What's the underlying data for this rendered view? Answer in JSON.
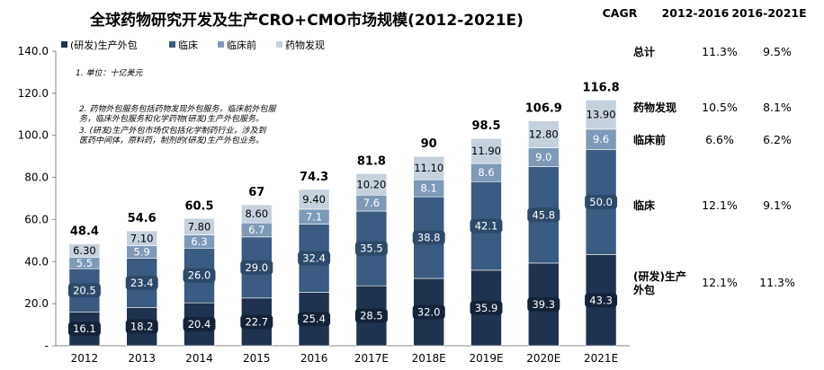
{
  "chart_data": {
    "type": "bar",
    "stacked": true,
    "title": "全球药物研究开发及生产CRO+CMO市场规模(2012-2021E)",
    "categories": [
      "2012",
      "2013",
      "2014",
      "2015",
      "2016",
      "2017E",
      "2018E",
      "2019E",
      "2020E",
      "2021E"
    ],
    "series": [
      {
        "name": "(研发)生产外包",
        "color": "#1f3350",
        "values": [
          16.1,
          18.2,
          20.4,
          22.7,
          25.4,
          28.5,
          32.0,
          35.9,
          39.3,
          43.3
        ],
        "labels": [
          "16.1",
          "18.2",
          "20.4",
          "22.7",
          "25.4",
          "28.5",
          "32.0",
          "35.9",
          "39.3",
          "43.3"
        ]
      },
      {
        "name": "临床",
        "color": "#3a5b82",
        "values": [
          20.5,
          23.4,
          26.0,
          29.0,
          32.4,
          35.5,
          38.8,
          42.1,
          45.8,
          50.0
        ],
        "labels": [
          "20.5",
          "23.4",
          "26.0",
          "29.0",
          "32.4",
          "35.5",
          "38.8",
          "42.1",
          "45.8",
          "50.0"
        ]
      },
      {
        "name": "临床前",
        "color": "#7f9ab8",
        "values": [
          5.5,
          5.9,
          6.3,
          6.7,
          7.1,
          7.6,
          8.1,
          8.6,
          9.0,
          9.6
        ],
        "labels": [
          "5.5",
          "5.9",
          "6.3",
          "6.7",
          "7.1",
          "7.6",
          "8.1",
          "8.6",
          "9.0",
          "9.6"
        ]
      },
      {
        "name": "药物发现",
        "color": "#c6d1de",
        "values": [
          6.3,
          7.1,
          7.8,
          8.6,
          9.4,
          10.2,
          11.1,
          11.9,
          12.8,
          13.9
        ],
        "labels": [
          "6.30",
          "7.10",
          "7.80",
          "8.60",
          "9.40",
          "10.20",
          "11.10",
          "11.90",
          "12.80",
          "13.90"
        ]
      }
    ],
    "totals": [
      "48.4",
      "54.6",
      "60.5",
      "67",
      "74.3",
      "81.8",
      "90",
      "98.5",
      "106.9",
      "116.8"
    ],
    "ylim": [
      0,
      140
    ],
    "yticks": [
      "-",
      "20.0",
      "40.0",
      "60.0",
      "80.0",
      "100.0",
      "120.0",
      "140.0"
    ],
    "legend_position": "top-left",
    "notes": [
      "1. 单位：十亿美元",
      "2. 药物外包服务包括药物发现外包服务，临床前外包服务，临床外包服务和化学药物(研发)生产外包服务。",
      "3. (研发)生产外包市场仅包括化学制药行业，涉及到医药中间体，原料药，制剂的(研发)生产外包业务。"
    ],
    "cagr_table": {
      "header": [
        "CAGR",
        "2012-2016",
        "2016-2021E"
      ],
      "rows": [
        {
          "name": "总计",
          "v1": "11.3%",
          "v2": "9.5%"
        },
        {
          "name": "药物发现",
          "v1": "10.5%",
          "v2": "8.1%"
        },
        {
          "name": "临床前",
          "v1": "6.6%",
          "v2": "6.2%"
        },
        {
          "name": "临床",
          "v1": "12.1%",
          "v2": "9.1%"
        },
        {
          "name": "(研发)生产外包",
          "v1": "12.1%",
          "v2": "11.3%"
        }
      ]
    }
  }
}
